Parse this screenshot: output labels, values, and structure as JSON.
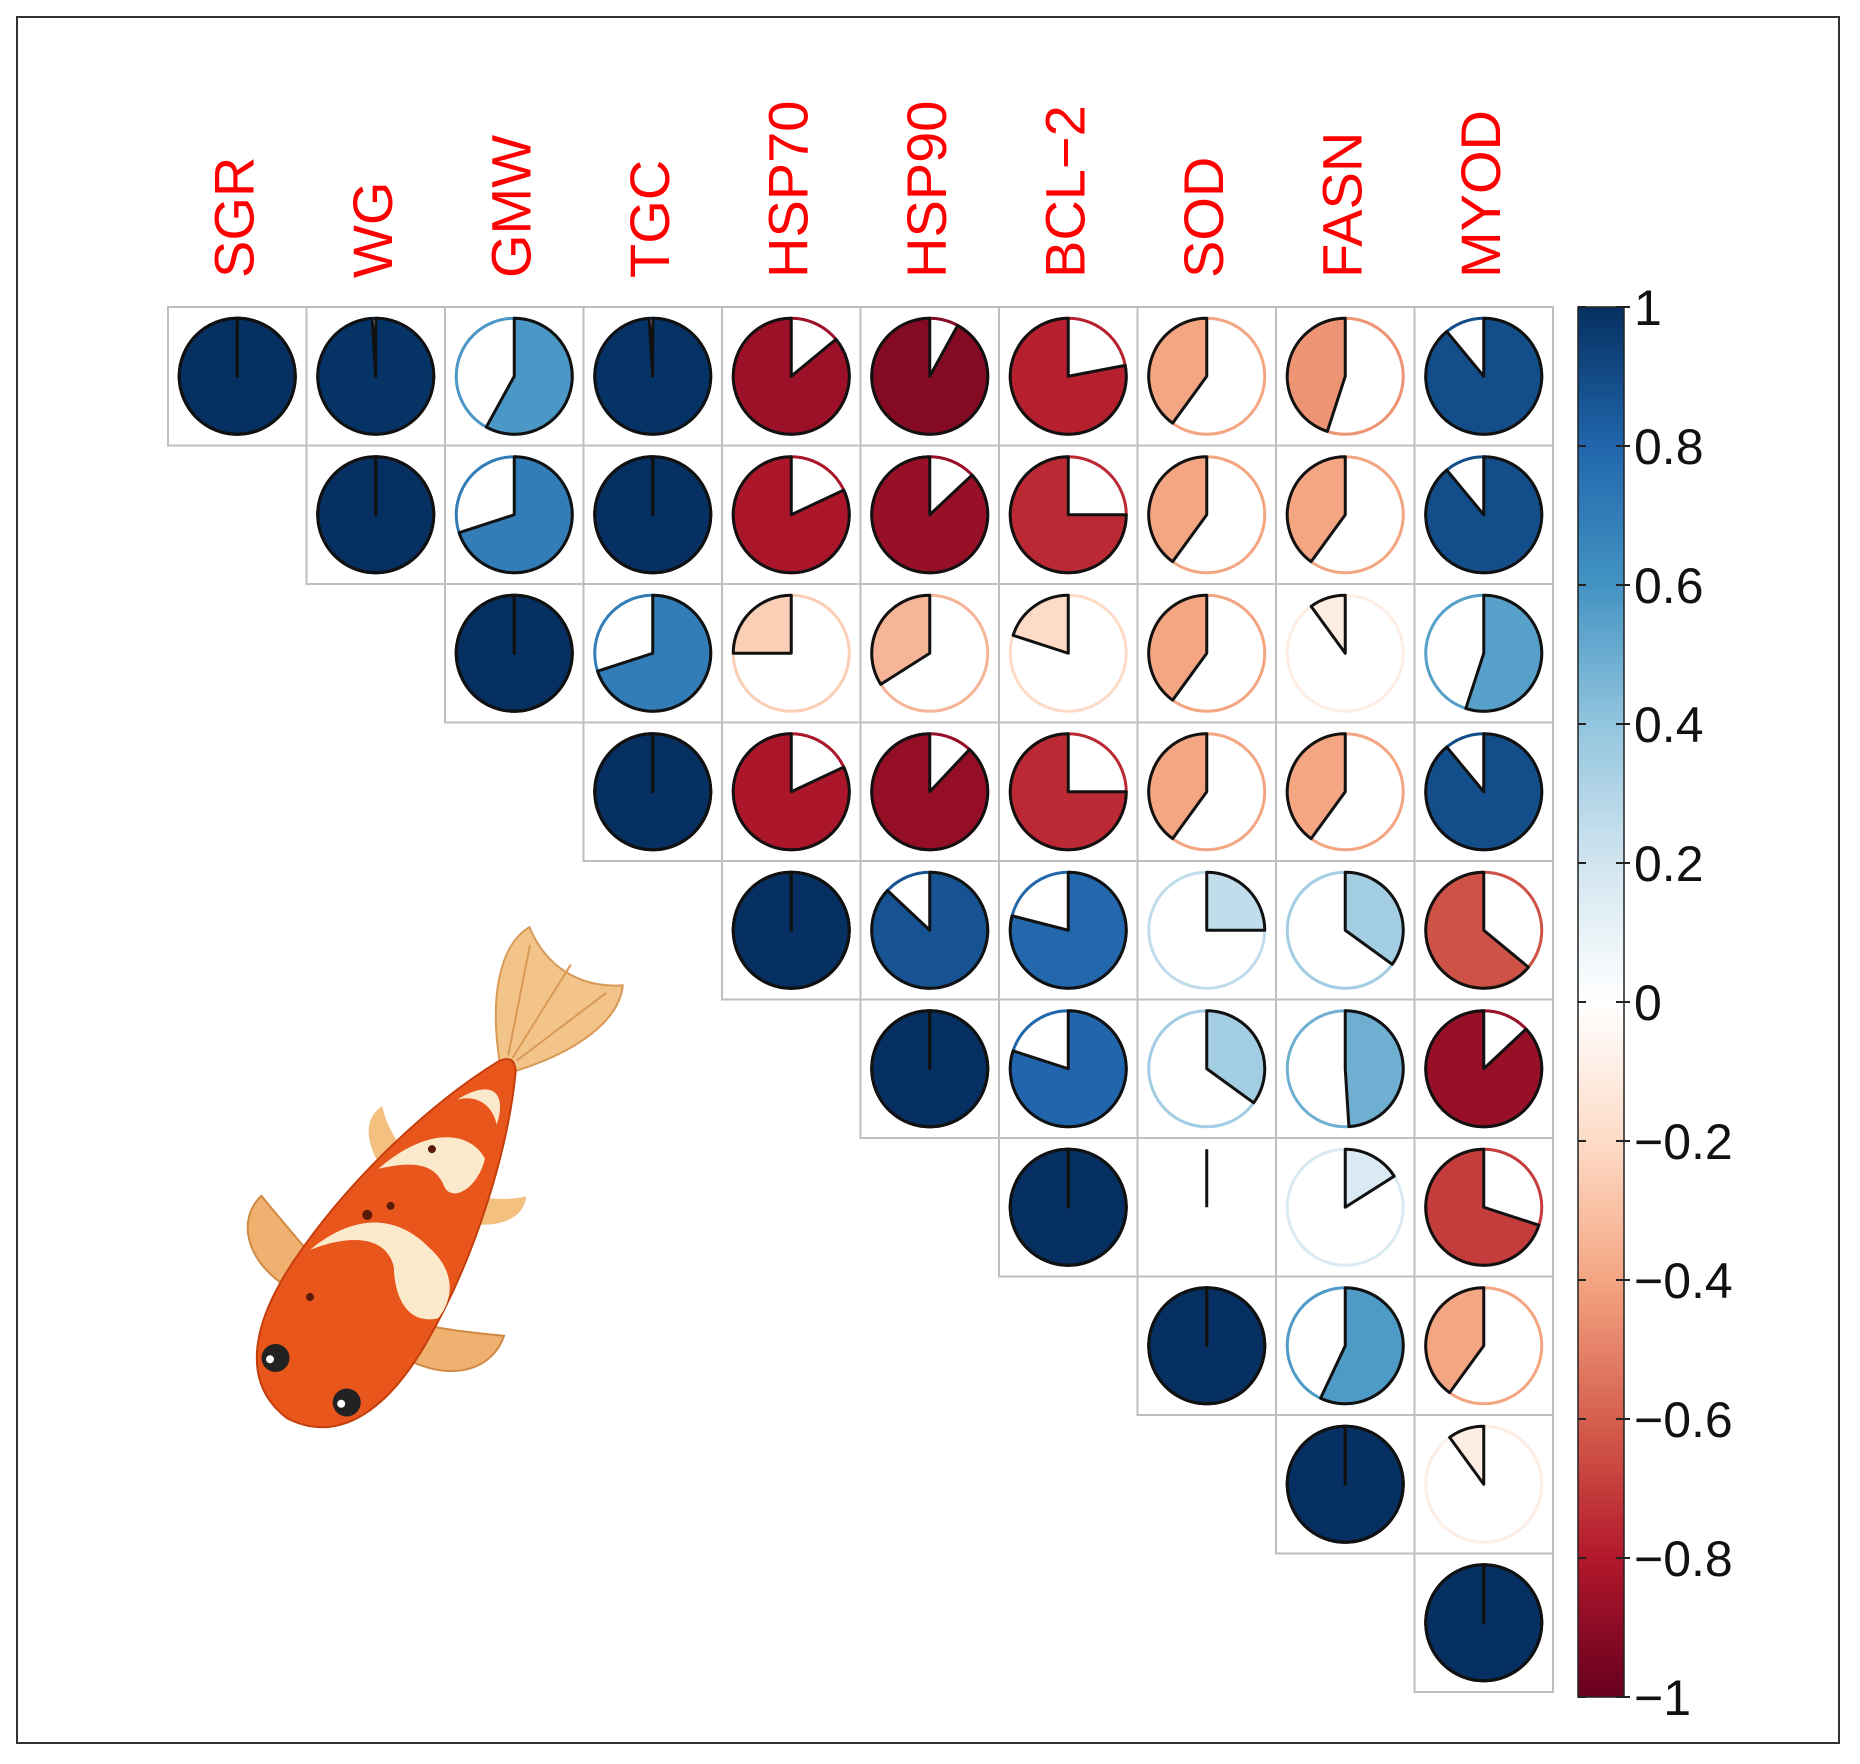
{
  "chart_data": {
    "type": "heatmap",
    "variables": [
      "SGR",
      "WG",
      "GMW",
      "TGC",
      "HSP70",
      "HSP90",
      "BCL−2",
      "SOD",
      "FASN",
      "MYOD"
    ],
    "matrix_upper": [
      [
        1.0,
        0.99,
        0.58,
        0.99,
        -0.86,
        -0.92,
        -0.78,
        -0.4,
        -0.45,
        0.89
      ],
      [
        null,
        1.0,
        0.7,
        1.0,
        -0.82,
        -0.87,
        -0.75,
        -0.4,
        -0.4,
        0.89
      ],
      [
        null,
        null,
        1.0,
        0.7,
        -0.25,
        -0.34,
        -0.2,
        -0.4,
        -0.1,
        0.55
      ],
      [
        null,
        null,
        null,
        1.0,
        -0.82,
        -0.88,
        -0.75,
        -0.4,
        -0.4,
        0.89
      ],
      [
        null,
        null,
        null,
        null,
        1.0,
        0.87,
        0.79,
        0.25,
        0.35,
        -0.64
      ],
      [
        null,
        null,
        null,
        null,
        null,
        1.0,
        0.8,
        0.35,
        0.49,
        -0.87
      ],
      [
        null,
        null,
        null,
        null,
        null,
        null,
        1.0,
        0.0,
        0.16,
        -0.7
      ],
      [
        null,
        null,
        null,
        null,
        null,
        null,
        null,
        1.0,
        0.57,
        -0.4
      ],
      [
        null,
        null,
        null,
        null,
        null,
        null,
        null,
        null,
        1.0,
        -0.1
      ],
      [
        null,
        null,
        null,
        null,
        null,
        null,
        null,
        null,
        null,
        1.0
      ]
    ],
    "colorbar": {
      "min": -1,
      "max": 1,
      "ticks": [
        "1",
        "0.8",
        "0.6",
        "0.4",
        "0.2",
        "0",
        "−0.2",
        "−0.4",
        "−0.6",
        "−0.8",
        "−1"
      ]
    },
    "label_color": "#ff0000",
    "positive_color": "#053061",
    "negative_color": "#67001f"
  },
  "illustration": "koi-fish"
}
